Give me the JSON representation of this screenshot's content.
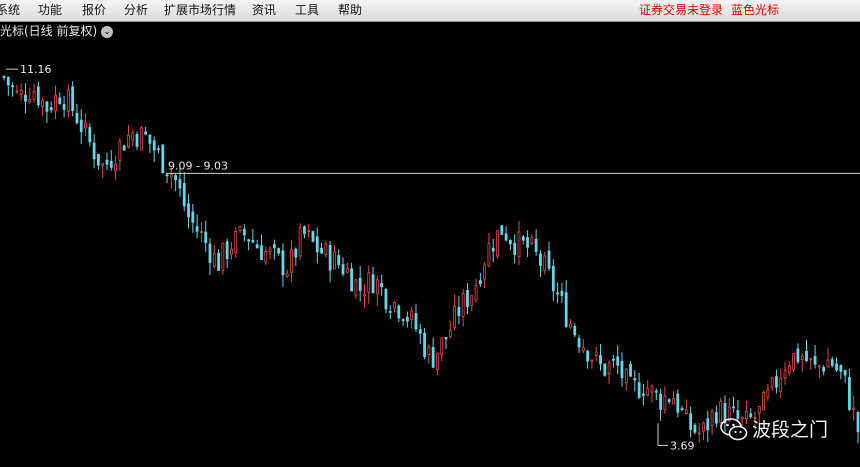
{
  "menu": {
    "items": [
      "系统",
      "功能",
      "报价",
      "分析",
      "扩展市场行情",
      "资讯",
      "工具",
      "帮助"
    ],
    "status_left": "证券交易未登录",
    "status_right": "蓝色光标"
  },
  "chart_header": {
    "title": "蓝色光标(日线 前复权)"
  },
  "annotations": {
    "high_label": "11.16",
    "resistance_label": "9.09 - 9.03",
    "low_label": "3.69"
  },
  "watermark": {
    "text": "波段之门",
    "icon": "wechat-icon"
  },
  "colors": {
    "up": "#e04a4a",
    "down": "#6ad4e4",
    "line": "#d0d0d0",
    "background": "#000000"
  },
  "chart_data": {
    "type": "candlestick",
    "interval": "daily",
    "adjustment": "前复权",
    "xlabel": "",
    "ylabel": "",
    "ylim": [
      3.5,
      11.5
    ],
    "marked_high": 11.16,
    "horizontal_line": {
      "from": 9.09,
      "to": 9.03
    },
    "marked_low": 3.69,
    "close_path": [
      11.0,
      10.6,
      10.8,
      10.4,
      10.7,
      10.3,
      9.7,
      9.2,
      9.6,
      9.9,
      9.8,
      9.4,
      9.0,
      8.2,
      7.8,
      7.3,
      7.7,
      7.9,
      7.6,
      7.4,
      7.2,
      7.9,
      7.6,
      7.4,
      7.2,
      6.8,
      7.0,
      6.6,
      6.4,
      6.0,
      5.4,
      5.8,
      6.4,
      6.8,
      7.6,
      8.0,
      7.7,
      7.6,
      7.2,
      6.6,
      6.0,
      5.6,
      5.2,
      5.3,
      4.8,
      4.9,
      4.6,
      4.7,
      4.1,
      3.9,
      4.4,
      4.3,
      4.1,
      4.3,
      4.8,
      5.4,
      5.5,
      5.2,
      5.4,
      5.0,
      4.0
    ]
  }
}
